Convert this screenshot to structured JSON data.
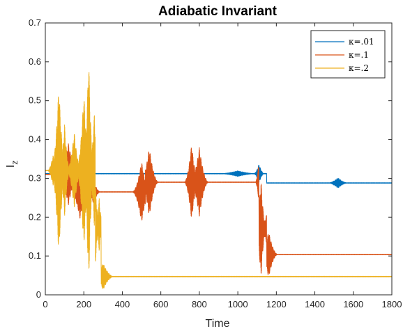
{
  "chart_data": {
    "type": "line",
    "title": "Adiabatic Invariant",
    "xlabel": "Time",
    "ylabel": "I",
    "ylabel_subscript": "z",
    "xlim": [
      0,
      1800
    ],
    "ylim": [
      0,
      0.7
    ],
    "xticks": [
      0,
      200,
      400,
      600,
      800,
      1000,
      1200,
      1400,
      1600,
      1800
    ],
    "yticks": [
      0,
      0.1,
      0.2,
      0.3,
      0.4,
      0.5,
      0.6,
      0.7
    ],
    "xtick_labels": [
      "0",
      "200",
      "400",
      "600",
      "800",
      "1000",
      "1200",
      "1400",
      "1600",
      "1800"
    ],
    "ytick_labels": [
      "0",
      "0.1",
      "0.2",
      "0.3",
      "0.4",
      "0.5",
      "0.6",
      "0.7"
    ],
    "grid": false,
    "legend_position": "top-right",
    "series": [
      {
        "name": "κ=.01",
        "color": "#0072BD",
        "segments": [
          {
            "x0": 0,
            "x1": 1100,
            "base": 0.312,
            "slope": 0.0
          },
          {
            "x0": 1150,
            "x1": 1800,
            "base": 0.288,
            "slope": 0.0
          }
        ],
        "bursts": [
          {
            "x": 1000,
            "width": 120,
            "amp": 0.008
          },
          {
            "x": 1110,
            "width": 30,
            "amp": 0.025
          },
          {
            "x": 1520,
            "width": 60,
            "amp": 0.014
          }
        ],
        "end_drop": {
          "x": 1800,
          "y_min": 0.1,
          "y_max": 0.33
        }
      },
      {
        "name": "κ=.1",
        "color": "#D95319",
        "segments": [
          {
            "x0": 0,
            "x1": 150,
            "base": 0.31,
            "slope": 0.0
          },
          {
            "x0": 150,
            "x1": 520,
            "base": 0.265,
            "slope": 0.0
          },
          {
            "x0": 520,
            "x1": 780,
            "base": 0.29,
            "slope": 0.0
          },
          {
            "x0": 780,
            "x1": 1110,
            "base": 0.29,
            "slope": 0.0
          },
          {
            "x0": 1110,
            "x1": 1150,
            "base": 0.17,
            "slope": 0.0
          },
          {
            "x0": 1150,
            "x1": 1800,
            "base": 0.104,
            "slope": 0.0
          }
        ],
        "bursts": [
          {
            "x": 60,
            "width": 40,
            "amp": 0.03
          },
          {
            "x": 120,
            "width": 60,
            "amp": 0.08
          },
          {
            "x": 180,
            "width": 50,
            "amp": 0.07
          },
          {
            "x": 250,
            "width": 40,
            "amp": 0.03
          },
          {
            "x": 500,
            "width": 50,
            "amp": 0.08
          },
          {
            "x": 540,
            "width": 50,
            "amp": 0.09
          },
          {
            "x": 760,
            "width": 40,
            "amp": 0.1
          },
          {
            "x": 800,
            "width": 50,
            "amp": 0.09
          },
          {
            "x": 1120,
            "width": 30,
            "amp": 0.13
          },
          {
            "x": 1160,
            "width": 50,
            "amp": 0.06
          }
        ]
      },
      {
        "name": "κ=.2",
        "color": "#EDB120",
        "segments": [
          {
            "x0": 0,
            "x1": 260,
            "base": 0.32,
            "slope": 0.0
          },
          {
            "x0": 260,
            "x1": 290,
            "base": 0.18,
            "slope": 0.0
          },
          {
            "x0": 290,
            "x1": 1800,
            "base": 0.047,
            "slope": 0.0
          }
        ],
        "bursts": [
          {
            "x": 40,
            "width": 30,
            "amp": 0.04
          },
          {
            "x": 70,
            "width": 40,
            "amp": 0.22
          },
          {
            "x": 100,
            "width": 30,
            "amp": 0.12
          },
          {
            "x": 150,
            "width": 40,
            "amp": 0.1
          },
          {
            "x": 200,
            "width": 40,
            "amp": 0.2
          },
          {
            "x": 225,
            "width": 30,
            "amp": 0.3
          },
          {
            "x": 255,
            "width": 30,
            "amp": 0.15
          },
          {
            "x": 280,
            "width": 20,
            "amp": 0.07
          },
          {
            "x": 300,
            "width": 60,
            "amp": 0.035
          }
        ]
      }
    ]
  }
}
